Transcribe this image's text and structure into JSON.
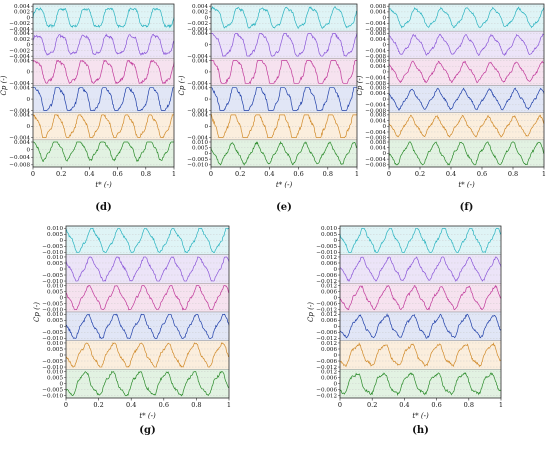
{
  "chart_data": [
    {
      "type": "line",
      "panel_label": "(d)",
      "xlabel": "t* (-)",
      "ylabel": "Cp (-)",
      "x_ticks": [
        "0",
        "0.2",
        "0.4",
        "0.6",
        "0.8",
        "1"
      ],
      "xlim": [
        0,
        1
      ],
      "cycles": 6,
      "series": [
        {
          "color": "#2ab3c0",
          "bg": "#dff4f6",
          "amplitude": 0.0035,
          "ticks": [
            "0.004",
            "0.002",
            "0",
            "−0.002",
            "−0.004"
          ]
        },
        {
          "color": "#8a56d8",
          "bg": "#ece4f8",
          "amplitude": 0.0035,
          "ticks": [
            "0.004",
            "0.002",
            "0",
            "−0.002",
            "−0.004"
          ]
        },
        {
          "color": "#c0399a",
          "bg": "#f6e2ef",
          "amplitude": 0.004,
          "ticks": [
            "0.004",
            "0",
            "−0.004"
          ]
        },
        {
          "color": "#1f3fa8",
          "bg": "#e1e6f6",
          "amplitude": 0.0045,
          "ticks": [
            "0.004",
            "0",
            "−0.004"
          ]
        },
        {
          "color": "#d08a2a",
          "bg": "#fbeedd",
          "amplitude": 0.004,
          "ticks": [
            "0.004",
            "0",
            "−0.004"
          ]
        },
        {
          "color": "#2a8a2a",
          "bg": "#e2f2e2",
          "amplitude": 0.005,
          "ticks": [
            "0.004",
            "0",
            "−0.004",
            "−0.008"
          ]
        }
      ]
    },
    {
      "type": "line",
      "panel_label": "(e)",
      "xlabel": "t* (-)",
      "ylabel": "Cp (-)",
      "x_ticks": [
        "0",
        "0.2",
        "0.4",
        "0.6",
        "0.8",
        "1"
      ],
      "xlim": [
        0,
        1
      ],
      "cycles": 6,
      "series": [
        {
          "color": "#2ab3c0",
          "bg": "#dff4f6",
          "amplitude": 0.0035,
          "ticks": [
            "0.004",
            "0.002",
            "0",
            "−0.002",
            "−0.004"
          ]
        },
        {
          "color": "#8a56d8",
          "bg": "#ece4f8",
          "amplitude": 0.004,
          "ticks": [
            "0.004",
            "0",
            "−0.004"
          ]
        },
        {
          "color": "#c0399a",
          "bg": "#f6e2ef",
          "amplitude": 0.005,
          "ticks": [
            "0.004",
            "0",
            "−0.004"
          ]
        },
        {
          "color": "#1f3fa8",
          "bg": "#e1e6f6",
          "amplitude": 0.005,
          "ticks": [
            "0.004",
            "0",
            "−0.004"
          ]
        },
        {
          "color": "#d08a2a",
          "bg": "#fbeedd",
          "amplitude": 0.005,
          "ticks": [
            "0.004",
            "0",
            "−0.004"
          ]
        },
        {
          "color": "#2a8a2a",
          "bg": "#e2f2e2",
          "amplitude": 0.008,
          "ticks": [
            "0.010",
            "0.005",
            "0",
            "−0.005",
            "−0.010"
          ]
        }
      ]
    },
    {
      "type": "line",
      "panel_label": "(f)",
      "xlabel": "t* (-)",
      "ylabel": "Cp (-)",
      "x_ticks": [
        "0",
        "0.2",
        "0.4",
        "0.6",
        "0.8",
        "1"
      ],
      "xlim": [
        0,
        1
      ],
      "cycles": 6,
      "series": [
        {
          "color": "#2ab3c0",
          "bg": "#dff4f6",
          "amplitude": 0.006,
          "ticks": [
            "0.008",
            "0.004",
            "0",
            "−0.004",
            "−0.008"
          ]
        },
        {
          "color": "#8a56d8",
          "bg": "#ece4f8",
          "amplitude": 0.006,
          "ticks": [
            "0.008",
            "0.004",
            "0",
            "−0.004",
            "−0.008"
          ]
        },
        {
          "color": "#c0399a",
          "bg": "#f6e2ef",
          "amplitude": 0.006,
          "ticks": [
            "0.008",
            "0.004",
            "0",
            "−0.004",
            "−0.008"
          ]
        },
        {
          "color": "#1f3fa8",
          "bg": "#e1e6f6",
          "amplitude": 0.006,
          "ticks": [
            "0.008",
            "0.004",
            "0",
            "−0.004",
            "−0.008"
          ]
        },
        {
          "color": "#d08a2a",
          "bg": "#fbeedd",
          "amplitude": 0.006,
          "ticks": [
            "0.008",
            "0.004",
            "0",
            "−0.004",
            "−0.008"
          ]
        },
        {
          "color": "#2a8a2a",
          "bg": "#e2f2e2",
          "amplitude": 0.007,
          "ticks": [
            "0.008",
            "0.004",
            "0",
            "−0.004",
            "−0.008"
          ]
        }
      ]
    },
    {
      "type": "line",
      "panel_label": "(g)",
      "xlabel": "t* (-)",
      "ylabel": "Cp (-)",
      "x_ticks": [
        "0",
        "0.2",
        "0.4",
        "0.6",
        "0.8",
        "1"
      ],
      "xlim": [
        0,
        1
      ],
      "cycles": 6,
      "series": [
        {
          "color": "#2ab3c0",
          "bg": "#dff4f6",
          "amplitude": 0.009,
          "ticks": [
            "0.010",
            "0.005",
            "0",
            "−0.005",
            "−0.010"
          ]
        },
        {
          "color": "#8a56d8",
          "bg": "#ece4f8",
          "amplitude": 0.009,
          "ticks": [
            "0.010",
            "0.005",
            "0",
            "−0.005",
            "−0.010"
          ]
        },
        {
          "color": "#c0399a",
          "bg": "#f6e2ef",
          "amplitude": 0.009,
          "ticks": [
            "0.010",
            "0.005",
            "0",
            "−0.005",
            "−0.010"
          ]
        },
        {
          "color": "#1f3fa8",
          "bg": "#e1e6f6",
          "amplitude": 0.009,
          "ticks": [
            "0.010",
            "0.005",
            "0",
            "−0.005",
            "−0.010"
          ]
        },
        {
          "color": "#d08a2a",
          "bg": "#fbeedd",
          "amplitude": 0.009,
          "ticks": [
            "0.010",
            "0.005",
            "0",
            "−0.005",
            "−0.010"
          ]
        },
        {
          "color": "#2a8a2a",
          "bg": "#e2f2e2",
          "amplitude": 0.009,
          "ticks": [
            "0.010",
            "0.005",
            "0",
            "−0.005",
            "−0.010"
          ]
        }
      ]
    },
    {
      "type": "line",
      "panel_label": "(h)",
      "xlabel": "t* (-)",
      "ylabel": "Cp (-)",
      "x_ticks": [
        "0",
        "0.2",
        "0.4",
        "0.6",
        "0.8",
        "1"
      ],
      "xlim": [
        0,
        1
      ],
      "cycles": 6,
      "series": [
        {
          "color": "#2ab3c0",
          "bg": "#dff4f6",
          "amplitude": 0.009,
          "ticks": [
            "0.010",
            "0.005",
            "0",
            "−0.005",
            "−0.010"
          ]
        },
        {
          "color": "#8a56d8",
          "bg": "#ece4f8",
          "amplitude": 0.01,
          "ticks": [
            "0.012",
            "0.006",
            "0",
            "−0.006",
            "−0.012"
          ]
        },
        {
          "color": "#c0399a",
          "bg": "#f6e2ef",
          "amplitude": 0.01,
          "ticks": [
            "0.012",
            "0.006",
            "0",
            "−0.006",
            "−0.012"
          ]
        },
        {
          "color": "#1f3fa8",
          "bg": "#e1e6f6",
          "amplitude": 0.01,
          "ticks": [
            "0.012",
            "0.006",
            "0",
            "−0.006",
            "−0.012"
          ]
        },
        {
          "color": "#d08a2a",
          "bg": "#fbeedd",
          "amplitude": 0.01,
          "ticks": [
            "0.012",
            "0.006",
            "0",
            "−0.006",
            "−0.012"
          ]
        },
        {
          "color": "#2a8a2a",
          "bg": "#e2f2e2",
          "amplitude": 0.01,
          "ticks": [
            "0.012",
            "0.006",
            "0",
            "−0.006",
            "−0.012"
          ]
        }
      ]
    }
  ]
}
